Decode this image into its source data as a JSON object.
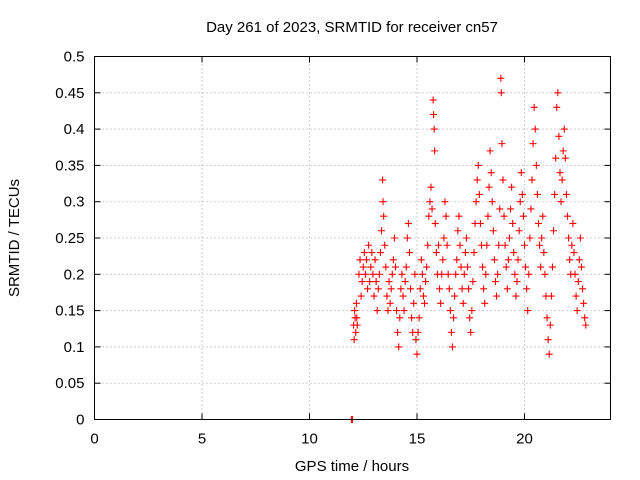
{
  "chart_data": {
    "type": "scatter",
    "title": "Day 261 of 2023, SRMTID for receiver cn57",
    "xlabel": "GPS time / hours",
    "ylabel": "SRMTID / TECUs",
    "xlim": [
      0,
      24
    ],
    "ylim": [
      0,
      0.5
    ],
    "xticks": [
      0,
      5,
      10,
      15,
      20
    ],
    "xtick_labels": [
      "0",
      "5",
      "10",
      "15",
      "20"
    ],
    "yticks": [
      0,
      0.05,
      0.1,
      0.15,
      0.2,
      0.25,
      0.3,
      0.35,
      0.4,
      0.45,
      0.5
    ],
    "ytick_labels": [
      "0",
      "0.05",
      "0.1",
      "0.15",
      "0.2",
      "0.25",
      "0.3",
      "0.35",
      "0.4",
      "0.45",
      "0.5"
    ],
    "grid": true,
    "marker": "+",
    "color": "#ff0000",
    "series": [
      {
        "name": "SRMTID",
        "points": [
          [
            11.95,
            0.0
          ],
          [
            12.0,
            0.0
          ],
          [
            12.05,
            0.13
          ],
          [
            12.08,
            0.11
          ],
          [
            12.1,
            0.15
          ],
          [
            12.12,
            0.14
          ],
          [
            12.15,
            0.12
          ],
          [
            12.18,
            0.16
          ],
          [
            12.2,
            0.14
          ],
          [
            12.22,
            0.13
          ],
          [
            12.3,
            0.2
          ],
          [
            12.35,
            0.22
          ],
          [
            12.4,
            0.17
          ],
          [
            12.45,
            0.19
          ],
          [
            12.5,
            0.21
          ],
          [
            12.55,
            0.23
          ],
          [
            12.6,
            0.2
          ],
          [
            12.65,
            0.22
          ],
          [
            12.7,
            0.18
          ],
          [
            12.75,
            0.24
          ],
          [
            12.8,
            0.19
          ],
          [
            12.85,
            0.21
          ],
          [
            12.9,
            0.23
          ],
          [
            12.95,
            0.2
          ],
          [
            13.0,
            0.17
          ],
          [
            13.05,
            0.22
          ],
          [
            13.1,
            0.19
          ],
          [
            13.15,
            0.15
          ],
          [
            13.2,
            0.18
          ],
          [
            13.25,
            0.2
          ],
          [
            13.3,
            0.23
          ],
          [
            13.35,
            0.26
          ],
          [
            13.4,
            0.33
          ],
          [
            13.42,
            0.3
          ],
          [
            13.45,
            0.28
          ],
          [
            13.5,
            0.24
          ],
          [
            13.55,
            0.21
          ],
          [
            13.6,
            0.17
          ],
          [
            13.65,
            0.15
          ],
          [
            13.7,
            0.19
          ],
          [
            13.75,
            0.16
          ],
          [
            13.8,
            0.18
          ],
          [
            13.85,
            0.2
          ],
          [
            13.9,
            0.22
          ],
          [
            13.95,
            0.25
          ],
          [
            14.0,
            0.21
          ],
          [
            14.05,
            0.15
          ],
          [
            14.1,
            0.12
          ],
          [
            14.15,
            0.1
          ],
          [
            14.2,
            0.14
          ],
          [
            14.25,
            0.18
          ],
          [
            14.3,
            0.2
          ],
          [
            14.35,
            0.17
          ],
          [
            14.4,
            0.15
          ],
          [
            14.45,
            0.19
          ],
          [
            14.5,
            0.21
          ],
          [
            14.55,
            0.25
          ],
          [
            14.6,
            0.27
          ],
          [
            14.65,
            0.23
          ],
          [
            14.7,
            0.18
          ],
          [
            14.75,
            0.14
          ],
          [
            14.8,
            0.12
          ],
          [
            14.85,
            0.16
          ],
          [
            14.9,
            0.2
          ],
          [
            14.95,
            0.11
          ],
          [
            15.0,
            0.09
          ],
          [
            15.05,
            0.12
          ],
          [
            15.1,
            0.14
          ],
          [
            15.15,
            0.18
          ],
          [
            15.2,
            0.22
          ],
          [
            15.25,
            0.2
          ],
          [
            15.3,
            0.17
          ],
          [
            15.35,
            0.16
          ],
          [
            15.4,
            0.19
          ],
          [
            15.45,
            0.21
          ],
          [
            15.5,
            0.24
          ],
          [
            15.55,
            0.28
          ],
          [
            15.6,
            0.3
          ],
          [
            15.65,
            0.32
          ],
          [
            15.7,
            0.29
          ],
          [
            15.75,
            0.44
          ],
          [
            15.77,
            0.42
          ],
          [
            15.8,
            0.4
          ],
          [
            15.82,
            0.37
          ],
          [
            15.85,
            0.27
          ],
          [
            15.9,
            0.23
          ],
          [
            15.95,
            0.2
          ],
          [
            16.0,
            0.24
          ],
          [
            16.05,
            0.18
          ],
          [
            16.1,
            0.16
          ],
          [
            16.15,
            0.2
          ],
          [
            16.2,
            0.22
          ],
          [
            16.25,
            0.25
          ],
          [
            16.3,
            0.3
          ],
          [
            16.35,
            0.28
          ],
          [
            16.4,
            0.24
          ],
          [
            16.45,
            0.2
          ],
          [
            16.5,
            0.18
          ],
          [
            16.55,
            0.15
          ],
          [
            16.6,
            0.12
          ],
          [
            16.65,
            0.1
          ],
          [
            16.7,
            0.14
          ],
          [
            16.75,
            0.17
          ],
          [
            16.8,
            0.2
          ],
          [
            16.85,
            0.22
          ],
          [
            16.9,
            0.26
          ],
          [
            16.95,
            0.28
          ],
          [
            17.0,
            0.24
          ],
          [
            17.05,
            0.21
          ],
          [
            17.1,
            0.18
          ],
          [
            17.15,
            0.16
          ],
          [
            17.2,
            0.2
          ],
          [
            17.25,
            0.23
          ],
          [
            17.3,
            0.25
          ],
          [
            17.35,
            0.21
          ],
          [
            17.4,
            0.18
          ],
          [
            17.45,
            0.14
          ],
          [
            17.5,
            0.12
          ],
          [
            17.55,
            0.15
          ],
          [
            17.6,
            0.19
          ],
          [
            17.65,
            0.23
          ],
          [
            17.7,
            0.27
          ],
          [
            17.75,
            0.3
          ],
          [
            17.8,
            0.33
          ],
          [
            17.85,
            0.35
          ],
          [
            17.9,
            0.31
          ],
          [
            17.95,
            0.27
          ],
          [
            18.0,
            0.24
          ],
          [
            18.05,
            0.21
          ],
          [
            18.1,
            0.18
          ],
          [
            18.15,
            0.16
          ],
          [
            18.2,
            0.2
          ],
          [
            18.25,
            0.24
          ],
          [
            18.3,
            0.28
          ],
          [
            18.35,
            0.32
          ],
          [
            18.4,
            0.37
          ],
          [
            18.45,
            0.34
          ],
          [
            18.5,
            0.3
          ],
          [
            18.55,
            0.26
          ],
          [
            18.6,
            0.22
          ],
          [
            18.65,
            0.19
          ],
          [
            18.7,
            0.17
          ],
          [
            18.75,
            0.2
          ],
          [
            18.8,
            0.24
          ],
          [
            18.85,
            0.29
          ],
          [
            18.9,
            0.47
          ],
          [
            18.92,
            0.45
          ],
          [
            18.95,
            0.38
          ],
          [
            19.0,
            0.33
          ],
          [
            19.05,
            0.28
          ],
          [
            19.1,
            0.24
          ],
          [
            19.15,
            0.21
          ],
          [
            19.2,
            0.18
          ],
          [
            19.25,
            0.22
          ],
          [
            19.3,
            0.25
          ],
          [
            19.35,
            0.29
          ],
          [
            19.4,
            0.32
          ],
          [
            19.45,
            0.27
          ],
          [
            19.5,
            0.23
          ],
          [
            19.55,
            0.2
          ],
          [
            19.6,
            0.17
          ],
          [
            19.65,
            0.19
          ],
          [
            19.7,
            0.22
          ],
          [
            19.75,
            0.26
          ],
          [
            19.8,
            0.3
          ],
          [
            19.85,
            0.34
          ],
          [
            19.9,
            0.31
          ],
          [
            19.95,
            0.28
          ],
          [
            20.0,
            0.24
          ],
          [
            20.05,
            0.21
          ],
          [
            20.1,
            0.18
          ],
          [
            20.15,
            0.15
          ],
          [
            20.2,
            0.2
          ],
          [
            20.25,
            0.25
          ],
          [
            20.3,
            0.29
          ],
          [
            20.35,
            0.33
          ],
          [
            20.4,
            0.38
          ],
          [
            20.45,
            0.43
          ],
          [
            20.5,
            0.4
          ],
          [
            20.55,
            0.35
          ],
          [
            20.6,
            0.31
          ],
          [
            20.65,
            0.27
          ],
          [
            20.7,
            0.24
          ],
          [
            20.75,
            0.21
          ],
          [
            20.8,
            0.25
          ],
          [
            20.85,
            0.28
          ],
          [
            20.9,
            0.23
          ],
          [
            20.95,
            0.2
          ],
          [
            21.0,
            0.17
          ],
          [
            21.05,
            0.14
          ],
          [
            21.1,
            0.11
          ],
          [
            21.15,
            0.09
          ],
          [
            21.2,
            0.13
          ],
          [
            21.25,
            0.17
          ],
          [
            21.3,
            0.21
          ],
          [
            21.35,
            0.26
          ],
          [
            21.4,
            0.31
          ],
          [
            21.45,
            0.36
          ],
          [
            21.5,
            0.43
          ],
          [
            21.55,
            0.45
          ],
          [
            21.6,
            0.39
          ],
          [
            21.65,
            0.34
          ],
          [
            21.7,
            0.3
          ],
          [
            21.75,
            0.33
          ],
          [
            21.8,
            0.37
          ],
          [
            21.85,
            0.4
          ],
          [
            21.9,
            0.36
          ],
          [
            21.95,
            0.31
          ],
          [
            22.0,
            0.28
          ],
          [
            22.05,
            0.25
          ],
          [
            22.1,
            0.22
          ],
          [
            22.15,
            0.2
          ],
          [
            22.2,
            0.24
          ],
          [
            22.25,
            0.27
          ],
          [
            22.3,
            0.23
          ],
          [
            22.35,
            0.2
          ],
          [
            22.4,
            0.17
          ],
          [
            22.45,
            0.15
          ],
          [
            22.5,
            0.19
          ],
          [
            22.55,
            0.22
          ],
          [
            22.6,
            0.25
          ],
          [
            22.65,
            0.21
          ],
          [
            22.7,
            0.18
          ],
          [
            22.75,
            0.16
          ],
          [
            22.8,
            0.14
          ],
          [
            22.85,
            0.13
          ]
        ]
      }
    ]
  }
}
